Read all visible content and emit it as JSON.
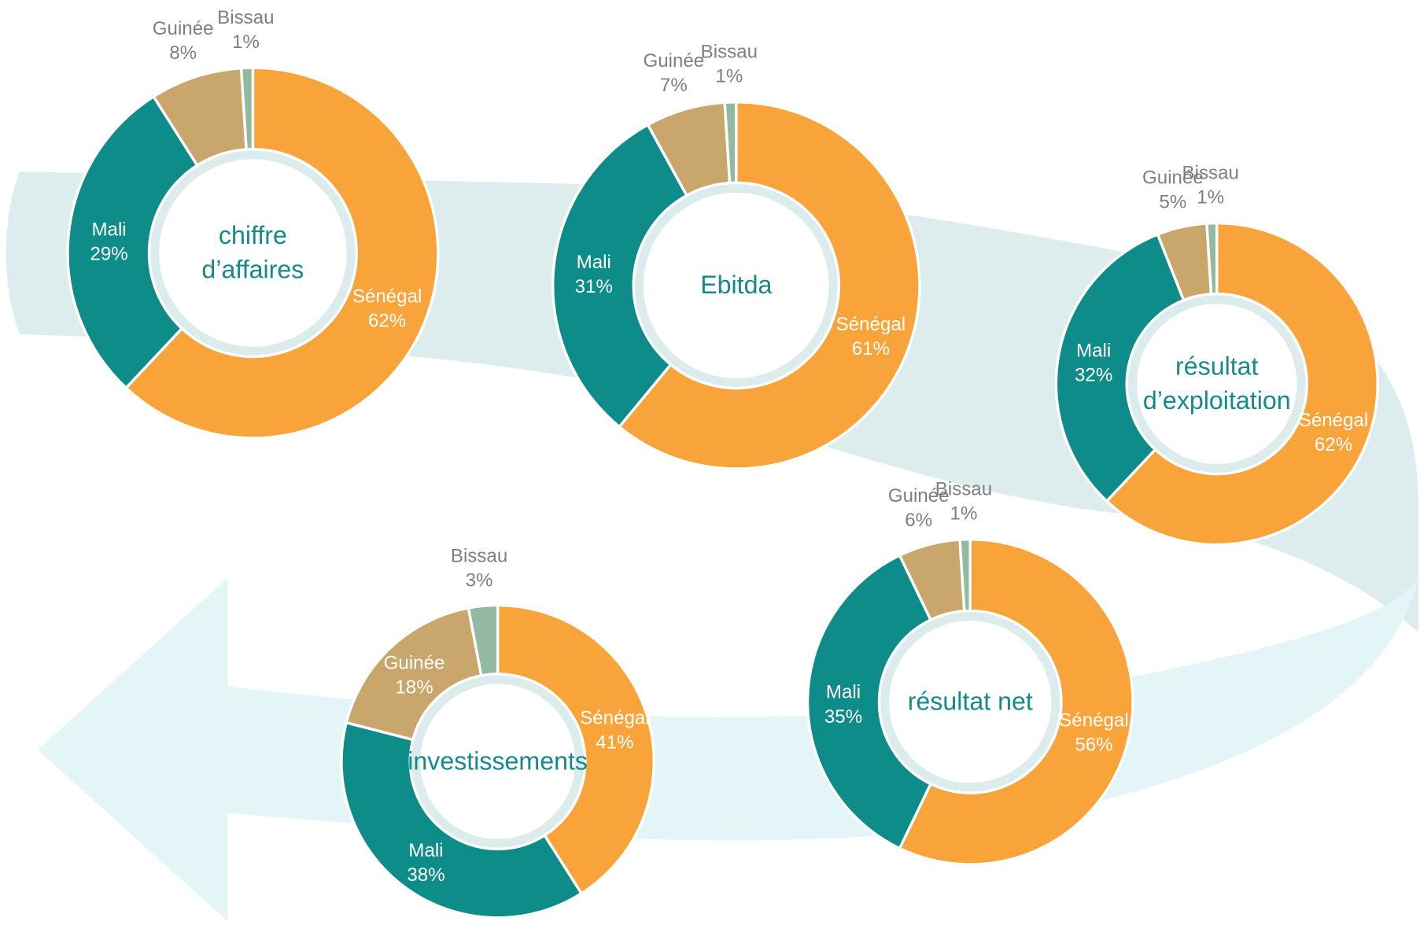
{
  "chart_data": [
    {
      "type": "pie",
      "title": "chiffre d’affaires",
      "categories": [
        "Sénégal",
        "Mali",
        "Guinée",
        "Bissau"
      ],
      "values": [
        62,
        29,
        8,
        1
      ],
      "value_labels": [
        "62%",
        "29%",
        "8%",
        "1%"
      ],
      "colors": [
        "#f9a43a",
        "#0e8c8a",
        "#c8a66c",
        "#93b9a0"
      ]
    },
    {
      "type": "pie",
      "title": "Ebitda",
      "categories": [
        "Sénégal",
        "Mali",
        "Guinée",
        "Bissau"
      ],
      "values": [
        61,
        31,
        7,
        1
      ],
      "value_labels": [
        "61%",
        "31%",
        "7%",
        "1%"
      ],
      "colors": [
        "#f9a43a",
        "#0e8c8a",
        "#c8a66c",
        "#93b9a0"
      ]
    },
    {
      "type": "pie",
      "title": "résultat d’exploitation",
      "categories": [
        "Sénégal",
        "Mali",
        "Guinée",
        "Bissau"
      ],
      "values": [
        62,
        32,
        5,
        1
      ],
      "value_labels": [
        "62%",
        "32%",
        "5%",
        "1%"
      ],
      "colors": [
        "#f9a43a",
        "#0e8c8a",
        "#c8a66c",
        "#93b9a0"
      ]
    },
    {
      "type": "pie",
      "title": "résultat net",
      "categories": [
        "Sénégal",
        "Mali",
        "Guinée",
        "Bissau"
      ],
      "values": [
        56,
        35,
        6,
        1
      ],
      "value_labels": [
        "56%",
        "35%",
        "6%",
        "1%"
      ],
      "colors": [
        "#f9a43a",
        "#0e8c8a",
        "#c8a66c",
        "#93b9a0"
      ]
    },
    {
      "type": "pie",
      "title": "investissements",
      "categories": [
        "Sénégal",
        "Mali",
        "Guinée",
        "Bissau"
      ],
      "values": [
        41,
        38,
        18,
        3
      ],
      "value_labels": [
        "41%",
        "38%",
        "18%",
        "3%"
      ],
      "colors": [
        "#f9a43a",
        "#0e8c8a",
        "#c8a66c",
        "#93b9a0"
      ]
    }
  ]
}
